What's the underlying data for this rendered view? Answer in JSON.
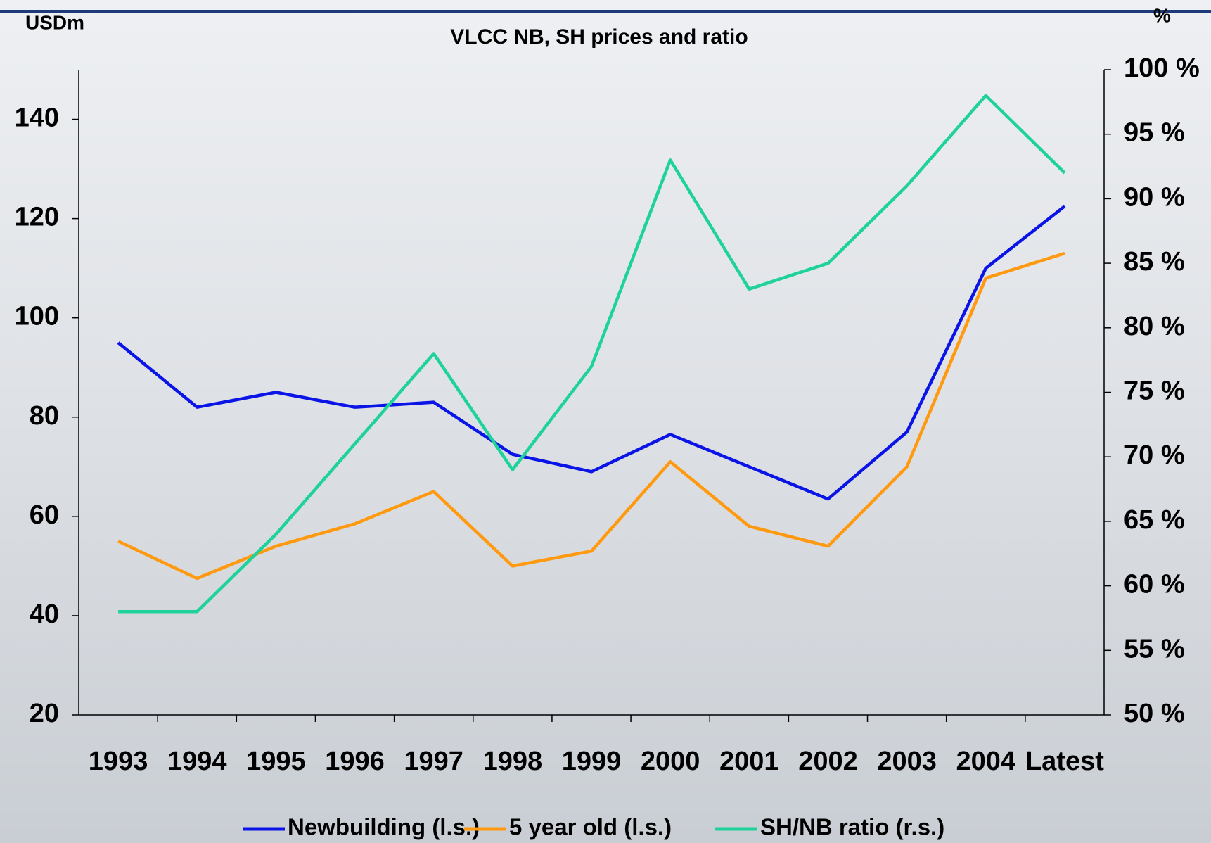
{
  "chart_data": {
    "type": "line",
    "title": "VLCC NB, SH prices and ratio",
    "y_label": "USDm",
    "y2_label": "%",
    "categories": [
      "1993",
      "1994",
      "1995",
      "1996",
      "1997",
      "1998",
      "1999",
      "2000",
      "2001",
      "2002",
      "2003",
      "2004",
      "Latest"
    ],
    "series": [
      {
        "name": "Newbuilding (l.s.)",
        "color": "#0a14e6",
        "values": [
          95,
          82,
          85,
          82,
          83,
          72.5,
          69,
          76.5,
          70,
          63.5,
          77,
          110,
          122.5
        ]
      },
      {
        "name": "5 year old (l.s.)",
        "color": "#ff9a10",
        "values": [
          55,
          47.5,
          54,
          58.5,
          65,
          50,
          53,
          71,
          58,
          54,
          70,
          108,
          113
        ]
      },
      {
        "name": "SH/NB ratio (r.s.)",
        "color": "#1ed29a",
        "axis": "y2",
        "values": [
          58,
          58,
          64,
          71,
          78,
          69,
          77,
          93,
          83,
          85,
          91,
          98,
          92
        ]
      }
    ],
    "ylim": [
      20,
      150
    ],
    "yticks": [
      20,
      40,
      60,
      80,
      100,
      120,
      140
    ],
    "y2lim": [
      50,
      100
    ],
    "y2ticks": [
      {
        "value": 50,
        "label": "50 %"
      },
      {
        "value": 55,
        "label": "55 %"
      },
      {
        "value": 60,
        "label": "60 %"
      },
      {
        "value": 65,
        "label": "65 %"
      },
      {
        "value": 70,
        "label": "70 %"
      },
      {
        "value": 75,
        "label": "75 %"
      },
      {
        "value": 80,
        "label": "80 %"
      },
      {
        "value": 85,
        "label": "85 %"
      },
      {
        "value": 90,
        "label": "90 %"
      },
      {
        "value": 95,
        "label": "95 %"
      },
      {
        "value": 100,
        "label": "100 %"
      }
    ],
    "legend": "bottom"
  }
}
